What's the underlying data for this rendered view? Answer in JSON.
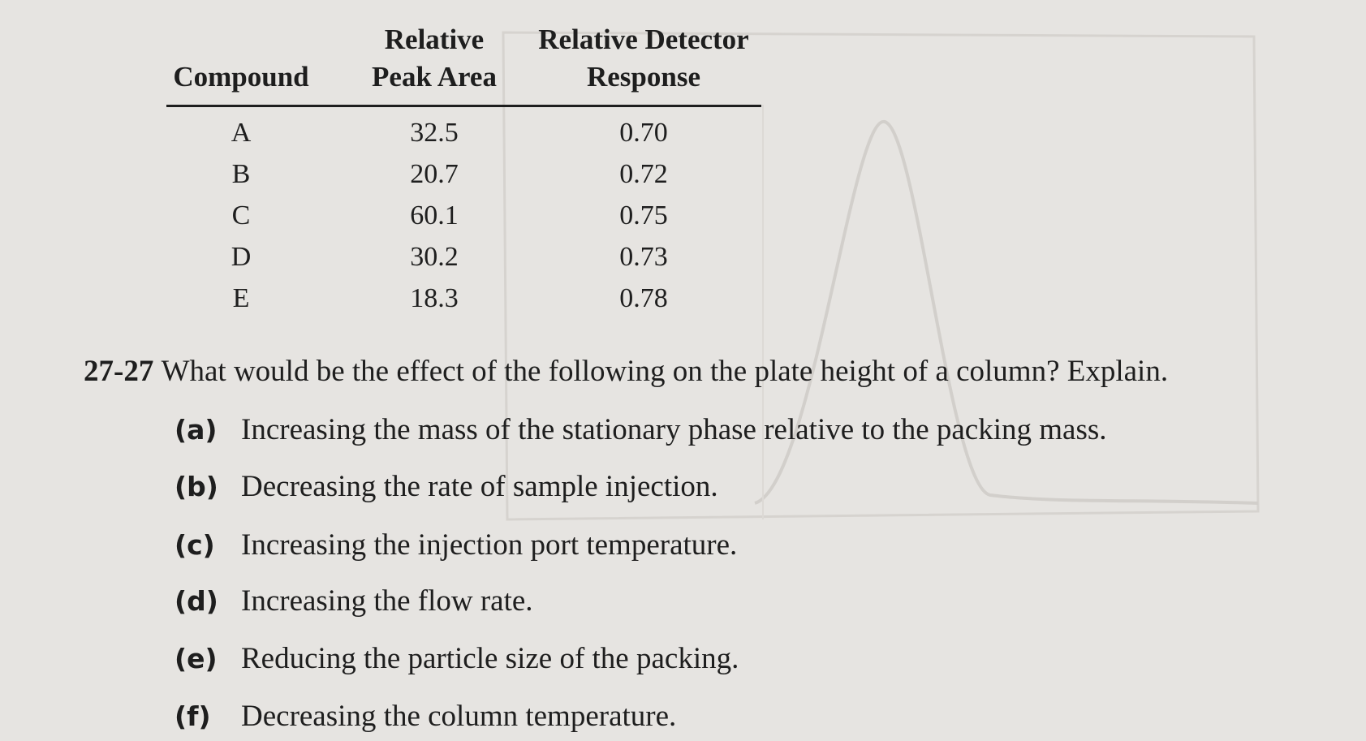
{
  "table": {
    "header": [
      [
        "Compound"
      ],
      [
        "Relative",
        "Peak Area"
      ],
      [
        "Relative Detector",
        "Response"
      ]
    ],
    "rows": [
      [
        "A",
        "32.5",
        "0.70"
      ],
      [
        "B",
        "20.7",
        "0.72"
      ],
      [
        "C",
        "60.1",
        "0.75"
      ],
      [
        "D",
        "30.2",
        "0.73"
      ],
      [
        "E",
        "18.3",
        "0.78"
      ]
    ]
  },
  "question": {
    "number": "27-27",
    "text": "What would be the effect of the following on the plate height of a column? Explain.",
    "items": [
      {
        "label": "(a)",
        "text": "Increasing the mass of the stationary phase relative to the packing mass."
      },
      {
        "label": "(b)",
        "text": "Decreasing the rate of sample injection."
      },
      {
        "label": "(c)",
        "text": "Increasing the injection port temperature."
      },
      {
        "label": "(d)",
        "text": "Increasing the flow rate."
      },
      {
        "label": "(e)",
        "text": "Reducing the particle size of the packing."
      },
      {
        "label": "(f)",
        "text": "Decreasing the column temperature."
      }
    ]
  }
}
